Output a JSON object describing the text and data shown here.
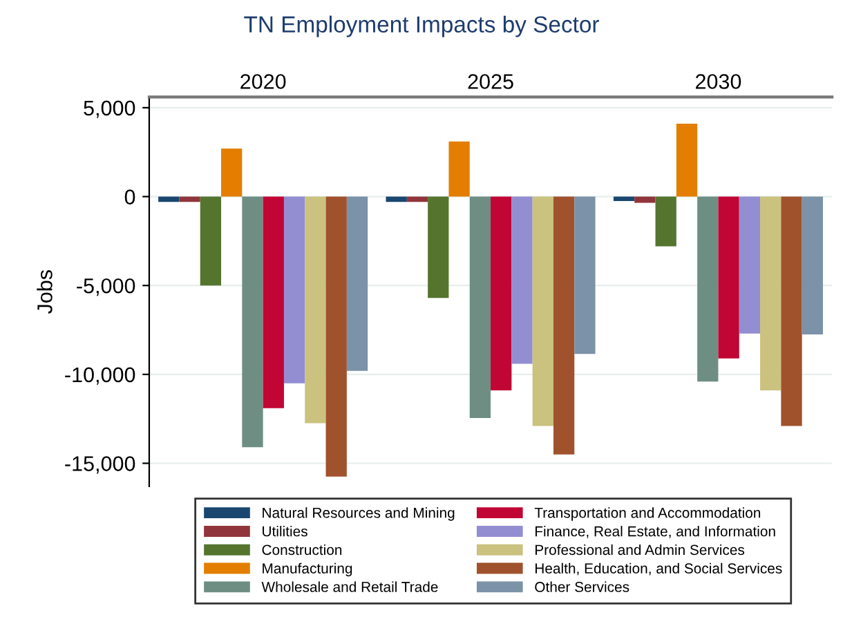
{
  "chart_data": {
    "type": "bar",
    "title": "TN Employment Impacts by Sector",
    "ylabel": "Jobs",
    "categories": [
      "2020",
      "2025",
      "2030"
    ],
    "series": [
      {
        "name": "Natural Resources and Mining",
        "color": "#1a476f",
        "values": [
          -300,
          -300,
          -250
        ]
      },
      {
        "name": "Utilities",
        "color": "#90353b",
        "values": [
          -300,
          -300,
          -350
        ]
      },
      {
        "name": "Construction",
        "color": "#55752f",
        "values": [
          -5000,
          -5700,
          -2800
        ]
      },
      {
        "name": "Manufacturing",
        "color": "#e37e00",
        "values": [
          2700,
          3100,
          4100
        ]
      },
      {
        "name": "Wholesale and Retail Trade",
        "color": "#6e8e84",
        "values": [
          -14100,
          -12450,
          -10400
        ]
      },
      {
        "name": "Transportation and Accommodation",
        "color": "#c10534",
        "values": [
          -11900,
          -10900,
          -9100
        ]
      },
      {
        "name": "Finance, Real Estate, and Information",
        "color": "#938dd2",
        "values": [
          -10500,
          -9400,
          -7700
        ]
      },
      {
        "name": "Professional and Admin Services",
        "color": "#cac27e",
        "values": [
          -12750,
          -12900,
          -10900
        ]
      },
      {
        "name": "Health, Education, and Social Services",
        "color": "#a0522d",
        "values": [
          -15750,
          -14500,
          -12900
        ]
      },
      {
        "name": "Other Services",
        "color": "#7b92a8",
        "values": [
          -9800,
          -8850,
          -7750
        ]
      }
    ],
    "ylim": [
      -16300,
      5600
    ],
    "yticks": [
      {
        "value": -15000,
        "label": "-15,000"
      },
      {
        "value": -10000,
        "label": "-10,000"
      },
      {
        "value": -5000,
        "label": "-5,000"
      },
      {
        "value": 0,
        "label": "0"
      },
      {
        "value": 5000,
        "label": "5,000"
      }
    ],
    "grid": "y",
    "legend": "bottom"
  }
}
